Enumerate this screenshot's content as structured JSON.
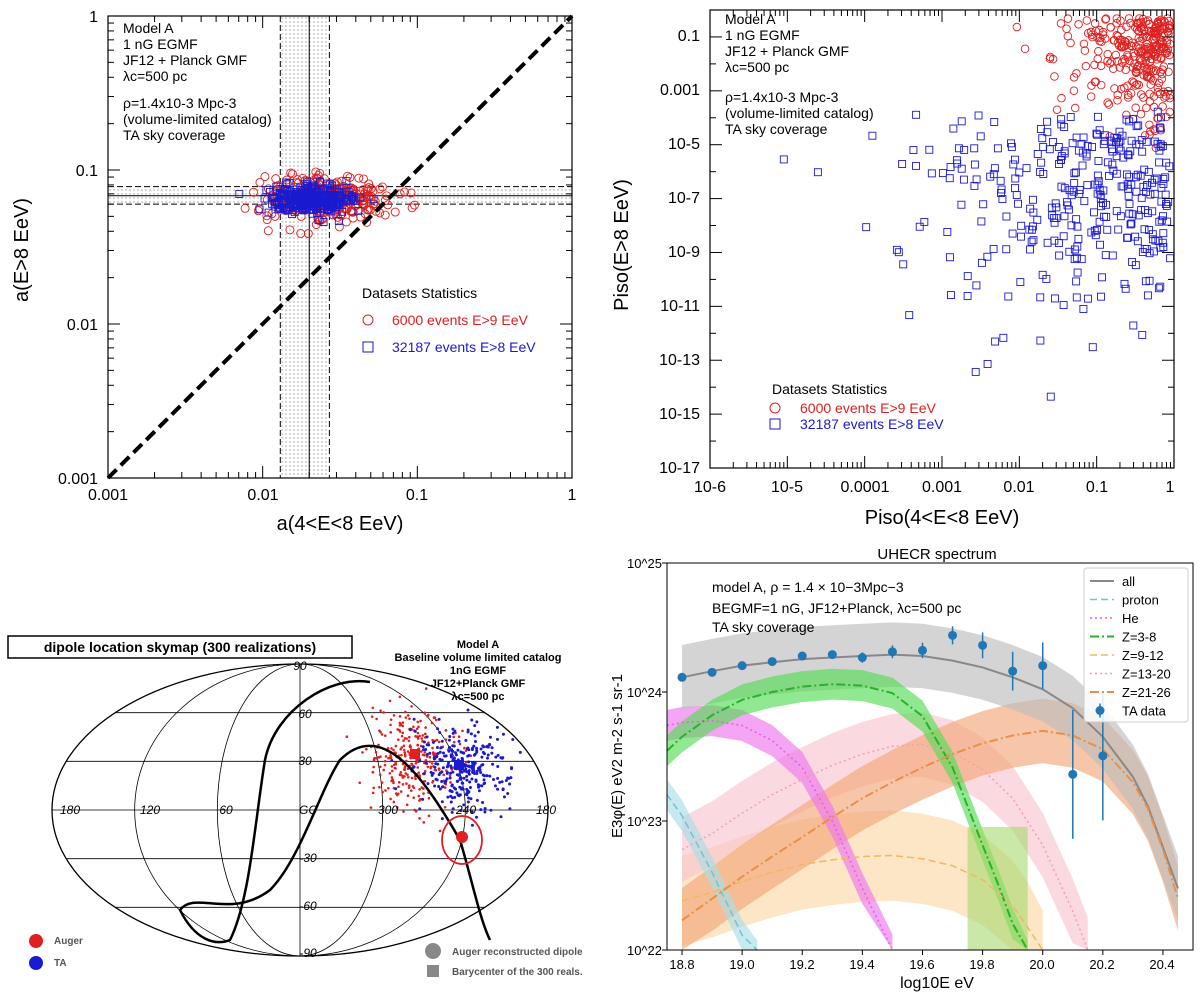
{
  "colors": {
    "red": "#e02020",
    "blue": "#1a1ad0",
    "grey": "#888888"
  },
  "panelA": {
    "annot": [
      "Model A",
      "1 nG  EGMF",
      "JF12 + Planck GMF",
      "λc=500 pc",
      "ρ=1.4x10-3  Mpc-3",
      "(volume-limited catalog)",
      "TA sky coverage"
    ],
    "xlabel": "a(4<E<8 EeV)",
    "ylabel": "a(E>8 EeV)",
    "ticks": [
      "0.001",
      "0.01",
      "0.1",
      "1"
    ],
    "legend_title": "Datasets Statistics",
    "legend": [
      "6000 events E>9 EeV",
      "32187 events E>8 EeV"
    ]
  },
  "panelB": {
    "annot": [
      "Model A",
      "1 nG  EGMF",
      "JF12 + Planck GMF",
      "λc=500 pc",
      "ρ=1.4x10-3  Mpc-3",
      "(volume-limited catalog)",
      "TA sky coverage"
    ],
    "xlabel": "Piso(4<E<8 EeV)",
    "ylabel": "Piso(E>8 EeV)",
    "xticks": [
      "10-6",
      "10-5",
      "0.0001",
      "0.001",
      "0.01",
      "0.1",
      "1"
    ],
    "yticks": [
      "0.1",
      "0.001",
      "10-5",
      "10-7",
      "10-9",
      "10-11",
      "10-13",
      "10-15",
      "10-17"
    ],
    "legend_title": "Datasets Statistics",
    "legend": [
      "6000 events E>9 EeV",
      "32187 events E>8 EeV"
    ]
  },
  "panelC": {
    "title": "dipole location skymap (300 realizations)",
    "info": [
      "Model A",
      "Baseline volume limited catalog",
      "1nG EGMF",
      "JF12+Planck GMF",
      "λc=500 pc"
    ],
    "lat_labels": [
      "90",
      "60",
      "30",
      "-30",
      "-60",
      "-90"
    ],
    "lon_labels": [
      "180",
      "120",
      "60",
      "GC",
      "300",
      "240",
      "180"
    ],
    "legend": [
      "Auger",
      "TA",
      "Auger reconstructed dipole",
      "Barycenter of the 300 reals."
    ]
  },
  "chart_data": [
    {
      "type": "scatter",
      "title": "",
      "xlabel": "a(4<E<8 EeV)",
      "ylabel": "a(E>8 EeV)",
      "xlim": [
        0.001,
        1
      ],
      "ylim": [
        0.001,
        1
      ],
      "scale": "log",
      "series": [
        {
          "name": "6000 events E>9 EeV",
          "marker": "circle",
          "center": [
            0.025,
            0.065
          ]
        },
        {
          "name": "32187 events E>8 EeV",
          "marker": "square",
          "center": [
            0.02,
            0.065
          ]
        }
      ],
      "bands": {
        "x": [
          0.013,
          0.027
        ],
        "x_center": 0.02,
        "y": [
          0.06,
          0.078
        ],
        "y_center": 0.068
      },
      "diagonal": "y=x"
    },
    {
      "type": "scatter",
      "xlabel": "Piso(4<E<8 EeV)",
      "ylabel": "Piso(E>8 EeV)",
      "xlim": [
        1e-06,
        1
      ],
      "ylim": [
        1e-17,
        1
      ],
      "scale": "log",
      "series": [
        {
          "name": "6000 events E>9 EeV",
          "marker": "circle"
        },
        {
          "name": "32187 events E>8 EeV",
          "marker": "square"
        }
      ]
    },
    {
      "type": "line",
      "title": "UHECR spectrum",
      "xlabel": "log10E eV",
      "ylabel": "E3φ(E) eV2 m-2 s-1 sr-1",
      "xlim": [
        18.75,
        20.5
      ],
      "ylim": [
        1e+22,
        1e+25
      ],
      "xticks": [
        "18.8",
        "19.0",
        "19.2",
        "19.4",
        "19.6",
        "19.8",
        "20.0",
        "20.2",
        "20.4"
      ],
      "yticks": [
        "10^25",
        "10^24",
        "10^23",
        "10^22"
      ],
      "annot": [
        "model A, ρ = 1.4 × 10−3Mpc−3",
        "BEGMF=1 nG, JF12+Planck, λc=500 pc",
        "TA sky coverage"
      ],
      "legend": [
        "all",
        "proton",
        "He",
        "Z=3-8",
        "Z=9-12",
        "Z=13-20",
        "Z=21-26",
        "TA data"
      ],
      "series": [
        {
          "name": "all",
          "x": [
            18.8,
            18.9,
            19.0,
            19.1,
            19.2,
            19.3,
            19.4,
            19.5,
            19.6,
            19.7,
            19.8,
            19.9,
            20.0,
            20.1,
            20.2,
            20.3,
            20.35,
            20.45
          ],
          "values": [
            1.3e+24,
            1.45e+24,
            1.6e+24,
            1.7e+24,
            1.8e+24,
            1.85e+24,
            1.9e+24,
            1.95e+24,
            1.9e+24,
            1.75e+24,
            1.55e+24,
            1.3e+24,
            1.05e+24,
            7.5e+23,
            4.5e+23,
            2.2e+23,
            1.3e+23,
            3e+22
          ]
        },
        {
          "name": "proton",
          "x": [
            18.75,
            18.8,
            18.9,
            19.0,
            19.05
          ],
          "values": [
            1.6e+23,
            1.1e+23,
            4e+22,
            1.3e+22,
            9e+21
          ]
        },
        {
          "name": "He",
          "x": [
            18.75,
            18.8,
            18.9,
            19.0,
            19.1,
            19.2,
            19.3,
            19.4,
            19.5
          ],
          "values": [
            5.5e+23,
            5.8e+23,
            6e+23,
            5.5e+23,
            4.2e+23,
            2.6e+23,
            1e+23,
            3e+22,
            1e+22
          ]
        },
        {
          "name": "Z=3-8",
          "x": [
            18.75,
            18.8,
            18.9,
            19.0,
            19.1,
            19.2,
            19.3,
            19.4,
            19.5,
            19.6,
            19.7,
            19.8,
            19.85,
            19.9,
            19.95
          ],
          "values": [
            3.5e+23,
            4.5e+23,
            6.6e+23,
            8.7e+23,
            1e+24,
            1.1e+24,
            1.15e+24,
            1.12e+24,
            9.8e+23,
            6.5e+23,
            2.6e+23,
            6.5e+22,
            3.3e+22,
            1.6e+22,
            9e+21
          ]
        },
        {
          "name": "Z=9-12",
          "x": [
            18.8,
            18.9,
            19.0,
            19.1,
            19.2,
            19.3,
            19.4,
            19.5,
            19.6,
            19.7,
            19.8,
            19.9,
            19.95,
            20.0
          ],
          "values": [
            2.4e+22,
            2.8e+22,
            3.4e+22,
            4e+22,
            4.6e+22,
            5e+22,
            5.3e+22,
            5.4e+22,
            5.1e+22,
            4.5e+22,
            3.5e+22,
            2.2e+22,
            1.5e+22,
            9e+21
          ]
        },
        {
          "name": "Z=13-20",
          "x": [
            18.8,
            18.9,
            19.0,
            19.1,
            19.2,
            19.3,
            19.4,
            19.5,
            19.6,
            19.7,
            19.8,
            19.9,
            20.0,
            20.1,
            20.15
          ],
          "values": [
            6e+22,
            8e+22,
            1.15e+23,
            1.6e+23,
            2.1e+23,
            2.7e+23,
            3.3e+23,
            3.8e+23,
            3.9e+23,
            3.4e+23,
            2.5e+23,
            1.5e+23,
            6.5e+22,
            2e+22,
            1e+22
          ]
        },
        {
          "name": "Z=21-26",
          "x": [
            18.8,
            18.9,
            19.0,
            19.1,
            19.2,
            19.3,
            19.4,
            19.5,
            19.6,
            19.7,
            19.8,
            19.9,
            20.0,
            20.1,
            20.2,
            20.3,
            20.35,
            20.4,
            20.45
          ],
          "values": [
            1.7e+22,
            2.5e+22,
            3.7e+22,
            5.3e+22,
            7.5e+22,
            1.07e+23,
            1.5e+23,
            2e+23,
            2.6e+23,
            3.3e+23,
            4e+23,
            4.6e+23,
            5e+23,
            4.6e+23,
            3.6e+23,
            2e+23,
            1.25e+23,
            6e+22,
            2.5e+22
          ]
        },
        {
          "name": "TA data",
          "x": [
            18.8,
            18.9,
            19.0,
            19.1,
            19.2,
            19.3,
            19.4,
            19.5,
            19.6,
            19.7,
            19.8,
            19.9,
            20.0,
            20.1,
            20.2
          ],
          "values": [
            1.3e+24,
            1.42e+24,
            1.6e+24,
            1.72e+24,
            1.9e+24,
            1.95e+24,
            1.85e+24,
            2.05e+24,
            2.1e+24,
            2.75e+24,
            2.3e+24,
            1.45e+24,
            1.6e+24,
            2.3e+23,
            3.2e+23
          ]
        }
      ]
    }
  ]
}
